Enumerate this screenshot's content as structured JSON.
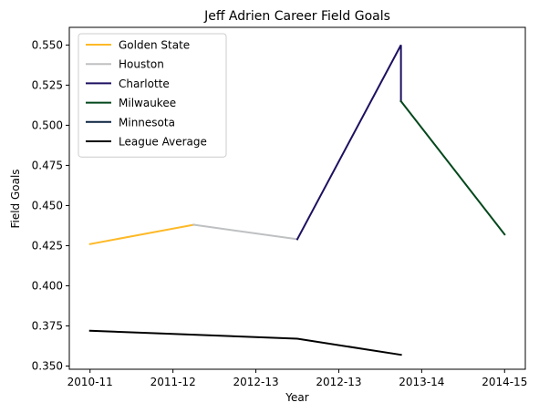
{
  "chart_data": {
    "type": "line",
    "title": "Jeff Adrien Career Field Goals",
    "xlabel": "Year",
    "ylabel": "Field Goals",
    "x_ticks": [
      {
        "pos": 0,
        "label": "2010-11"
      },
      {
        "pos": 1,
        "label": "2011-12"
      },
      {
        "pos": 2,
        "label": "2012-13"
      },
      {
        "pos": 3,
        "label": "2012-13"
      },
      {
        "pos": 4,
        "label": "2013-14"
      },
      {
        "pos": 5,
        "label": "2014-15"
      }
    ],
    "xlim": [
      -0.25,
      5.25
    ],
    "ylim": [
      0.348,
      0.561
    ],
    "y_ticks": [
      0.35,
      0.375,
      0.4,
      0.425,
      0.45,
      0.475,
      0.5,
      0.525,
      0.55
    ],
    "grid": false,
    "legend_position": "top-left",
    "series": [
      {
        "name": "Golden State",
        "color": "#FDB927",
        "points": [
          [
            0,
            0.426
          ],
          [
            1.25,
            0.438
          ]
        ]
      },
      {
        "name": "Houston",
        "color": "#BEC0C2",
        "points": [
          [
            1.25,
            0.438
          ],
          [
            2.5,
            0.429
          ]
        ]
      },
      {
        "name": "Charlotte",
        "color": "#1D1160",
        "points": [
          [
            2.5,
            0.429
          ],
          [
            3.75,
            0.55
          ],
          [
            3.75,
            0.515
          ]
        ]
      },
      {
        "name": "Milwaukee",
        "color": "#00471B",
        "points": [
          [
            3.75,
            0.515
          ],
          [
            5,
            0.432
          ]
        ]
      },
      {
        "name": "Minnesota",
        "color": "#0C2340",
        "points": []
      },
      {
        "name": "League Average",
        "color": "#000000",
        "points": [
          [
            0,
            0.372
          ],
          [
            1,
            0.37
          ],
          [
            2.5,
            0.367
          ],
          [
            3.75,
            0.357
          ]
        ]
      }
    ]
  }
}
